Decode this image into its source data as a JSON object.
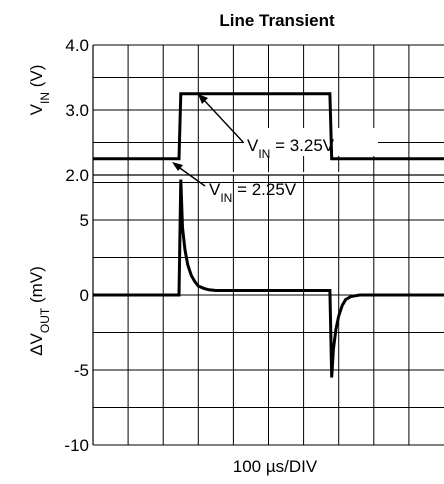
{
  "chart_data": [
    {
      "type": "line",
      "title": "Line Transient",
      "ylabel_main": "V",
      "ylabel_sub": "IN",
      "ylabel_unit": " (V)",
      "ylim": [
        2.0,
        4.0
      ],
      "yticks": [
        {
          "value": 2.0,
          "label": "2.0"
        },
        {
          "value": 3.0,
          "label": "3.0"
        },
        {
          "value": 4.0,
          "label": "4.0"
        }
      ],
      "xlim": [
        0,
        10
      ],
      "grid": true,
      "series": [
        {
          "x": [
            0,
            2.45,
            2.5,
            6.75,
            6.8,
            10
          ],
          "y": [
            2.25,
            2.25,
            3.25,
            3.25,
            2.25,
            2.25
          ]
        }
      ],
      "annotations": [
        {
          "main": "V",
          "sub": "IN",
          "rest": " = 3.25V",
          "value": 3.25
        },
        {
          "main": "V",
          "sub": "IN",
          "rest": " = 2.25V",
          "value": 2.25
        }
      ]
    },
    {
      "type": "line",
      "xlabel": "100 µs/DIV",
      "ylabel_main": "ΔV",
      "ylabel_sub": "OUT",
      "ylabel_unit": " (mV)",
      "ylim": [
        -10,
        8
      ],
      "yticks": [
        {
          "value": 5,
          "label": "5"
        },
        {
          "value": 0,
          "label": "0"
        },
        {
          "value": -5,
          "label": "-5"
        },
        {
          "value": -10,
          "label": "-10"
        }
      ],
      "xlim": [
        0,
        10
      ],
      "grid": true,
      "series": [
        {
          "x": [
            0,
            2.45,
            2.5,
            2.55,
            2.62,
            2.7,
            2.8,
            2.9,
            3.0,
            3.15,
            3.3,
            3.5,
            3.8,
            4.5,
            6.75,
            6.8,
            6.85,
            6.92,
            7.0,
            7.1,
            7.2,
            7.35,
            7.6,
            8.0,
            10
          ],
          "y": [
            0,
            0,
            7.7,
            4.5,
            3.0,
            2.0,
            1.3,
            0.9,
            0.6,
            0.45,
            0.35,
            0.3,
            0.3,
            0.3,
            0.3,
            -5.5,
            -3.6,
            -2.3,
            -1.4,
            -0.7,
            -0.3,
            -0.1,
            0,
            0,
            0
          ]
        }
      ]
    }
  ]
}
